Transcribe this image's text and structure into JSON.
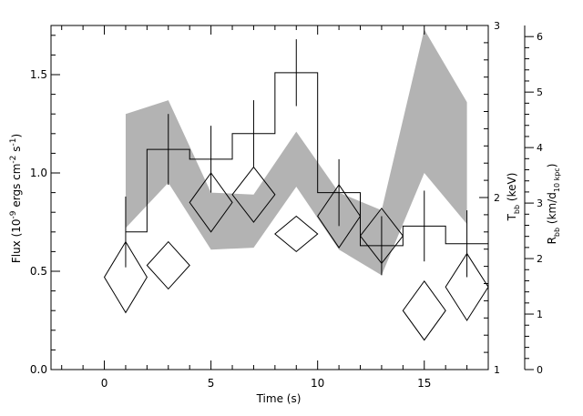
{
  "chart_data": {
    "type": "line",
    "title": "",
    "xlabel": "Time (s)",
    "ylabel_left": "Flux (10^-9 ergs cm^-2 s^-1)",
    "ylabel_mid": "T_bb (keV)",
    "ylabel_right": "R_bb (km/d_10 kpc)",
    "xlim": [
      -2.5,
      18
    ],
    "ylim_left": [
      0,
      1.75
    ],
    "x_ticks": [
      "0",
      "5",
      "10",
      "15"
    ],
    "y_ticks_left": [
      "0.0",
      "0.5",
      "1.0",
      "1.5"
    ],
    "y_ticks_mid": [
      "1",
      "2",
      "3"
    ],
    "y_ticks_right": [
      "0",
      "1",
      "2",
      "3",
      "4",
      "5",
      "6"
    ],
    "flux_histogram": {
      "bin_edges": [
        1,
        2,
        4,
        6,
        8,
        10,
        12,
        14,
        16,
        18
      ],
      "values": [
        0.7,
        1.12,
        1.07,
        1.2,
        1.51,
        0.9,
        0.63,
        0.73,
        0.64
      ]
    },
    "flux_errors": {
      "x": [
        1,
        3,
        5,
        7,
        9,
        11,
        13,
        15,
        17
      ],
      "y": [
        0.7,
        1.12,
        1.07,
        1.2,
        1.51,
        0.9,
        0.63,
        0.73,
        0.64
      ],
      "err": [
        0.18,
        0.18,
        0.17,
        0.17,
        0.17,
        0.17,
        0.15,
        0.18,
        0.17
      ]
    },
    "temperature_band": {
      "x": [
        1,
        3,
        5,
        7,
        9,
        11,
        13,
        15,
        17
      ],
      "upper": [
        1.3,
        1.37,
        0.9,
        0.89,
        1.21,
        0.9,
        0.81,
        1.73,
        1.36
      ],
      "lower": [
        0.72,
        0.95,
        0.61,
        0.62,
        0.93,
        0.61,
        0.48,
        1.0,
        0.74
      ]
    },
    "radius_diamonds": {
      "x": [
        1,
        3,
        5,
        7,
        9,
        11,
        13,
        15,
        17
      ],
      "y": [
        0.47,
        0.53,
        0.85,
        0.89,
        0.69,
        0.78,
        0.68,
        0.3,
        0.42
      ],
      "half_height": [
        0.18,
        0.12,
        0.15,
        0.14,
        0.09,
        0.16,
        0.14,
        0.15,
        0.17
      ],
      "half_width": [
        1.0,
        1.0,
        1.0,
        1.0,
        1.0,
        1.0,
        1.0,
        1.0,
        1.0
      ]
    }
  }
}
